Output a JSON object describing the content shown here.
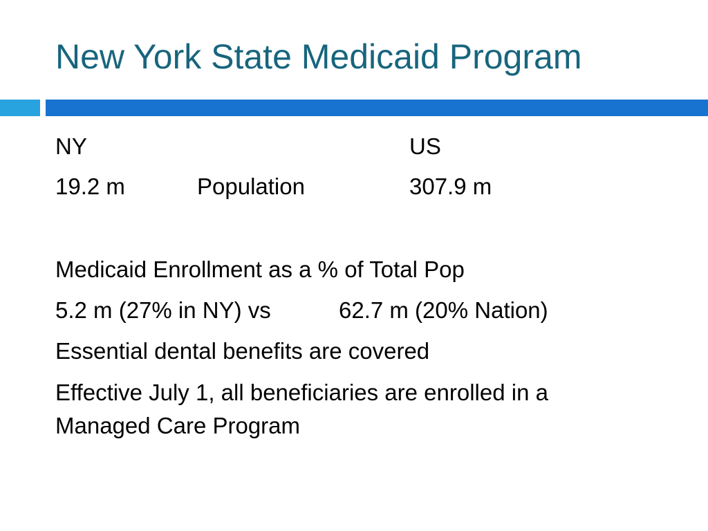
{
  "slide": {
    "title": "New York State Medicaid Program",
    "colors": {
      "title": "#17657d",
      "bar_left": "#29a3e0",
      "bar_right": "#1872cf"
    },
    "comparison": {
      "ny_header": "NY",
      "us_header": "US",
      "ny_population": "19.2 m",
      "population_label": "Population",
      "us_population": "307.9 m"
    },
    "enrollment_heading": "Medicaid Enrollment as a % of Total Pop",
    "enrollment_ny": "5.2 m (27% in NY) vs",
    "enrollment_us": "62.7 m (20% Nation)",
    "dental_note": "Essential dental benefits are covered",
    "managed_care_line1": "Effective July 1, all beneficiaries are enrolled in a",
    "managed_care_line2": "Managed Care Program"
  }
}
